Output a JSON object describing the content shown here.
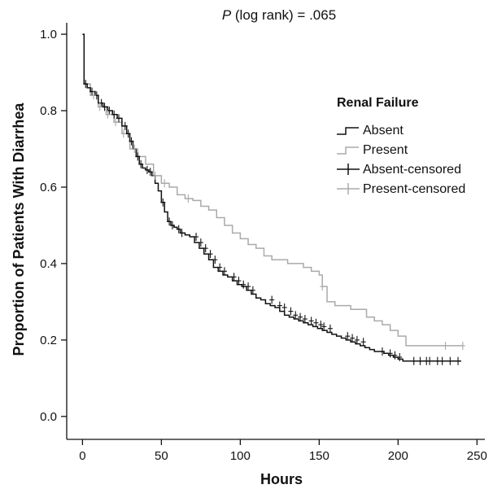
{
  "chart_data": {
    "type": "line",
    "subtype": "kaplan-meier step plot",
    "annotation": {
      "prefix": "P",
      "text": " (log rank) = .065"
    },
    "xlabel": "Hours",
    "ylabel": "Proportion of Patients With Diarrhea",
    "xlim": [
      -10,
      255
    ],
    "ylim": [
      -0.06,
      1.03
    ],
    "x_ticks": [
      0,
      50,
      100,
      150,
      200,
      250
    ],
    "y_ticks": [
      0.0,
      0.2,
      0.4,
      0.6,
      0.8,
      1.0
    ],
    "x_tick_labels": [
      "0",
      "50",
      "100",
      "150",
      "200",
      "250"
    ],
    "y_tick_labels": [
      "0.0",
      "0.2",
      "0.4",
      "0.6",
      "0.8",
      "1.0"
    ],
    "grid": false,
    "legend": {
      "title": "Renal Failure",
      "placement": "right",
      "entries": [
        "Absent",
        "Present",
        "Absent-censored",
        "Present-censored"
      ]
    },
    "colors": {
      "absent": "#111111",
      "present": "#aaaaaa",
      "axis": "#111111"
    },
    "series": [
      {
        "name": "Absent",
        "color": "#111111",
        "x": [
          0,
          1,
          3,
          5,
          8,
          10,
          13,
          16,
          19,
          22,
          25,
          28,
          30,
          32,
          34,
          36,
          38,
          40,
          42,
          44,
          46,
          48,
          50,
          52,
          54,
          56,
          58,
          60,
          62,
          65,
          68,
          71,
          74,
          77,
          80,
          83,
          86,
          89,
          92,
          95,
          98,
          101,
          104,
          107,
          110,
          113,
          116,
          119,
          122,
          125,
          128,
          131,
          134,
          137,
          140,
          143,
          146,
          149,
          152,
          155,
          158,
          161,
          164,
          167,
          170,
          173,
          176,
          179,
          182,
          185,
          188,
          191,
          194,
          197,
          200,
          203,
          206,
          240
        ],
        "y": [
          1.0,
          0.87,
          0.86,
          0.85,
          0.84,
          0.82,
          0.81,
          0.8,
          0.79,
          0.78,
          0.76,
          0.74,
          0.72,
          0.7,
          0.68,
          0.66,
          0.65,
          0.645,
          0.64,
          0.63,
          0.61,
          0.59,
          0.56,
          0.535,
          0.51,
          0.5,
          0.495,
          0.49,
          0.48,
          0.475,
          0.47,
          0.455,
          0.44,
          0.425,
          0.41,
          0.39,
          0.38,
          0.37,
          0.365,
          0.355,
          0.345,
          0.34,
          0.33,
          0.32,
          0.31,
          0.305,
          0.295,
          0.29,
          0.285,
          0.275,
          0.265,
          0.26,
          0.255,
          0.25,
          0.245,
          0.24,
          0.235,
          0.23,
          0.225,
          0.22,
          0.215,
          0.21,
          0.205,
          0.2,
          0.195,
          0.19,
          0.185,
          0.18,
          0.175,
          0.17,
          0.17,
          0.165,
          0.16,
          0.155,
          0.15,
          0.145,
          0.145,
          0.145
        ]
      },
      {
        "name": "Present",
        "color": "#aaaaaa",
        "x": [
          0,
          1,
          5,
          10,
          15,
          20,
          25,
          30,
          35,
          40,
          45,
          50,
          55,
          60,
          65,
          70,
          75,
          80,
          85,
          90,
          95,
          100,
          105,
          110,
          115,
          120,
          130,
          140,
          145,
          150,
          152,
          155,
          160,
          170,
          180,
          185,
          190,
          195,
          200,
          205,
          241
        ],
        "y": [
          1.0,
          0.87,
          0.84,
          0.81,
          0.79,
          0.77,
          0.74,
          0.7,
          0.68,
          0.66,
          0.63,
          0.61,
          0.6,
          0.58,
          0.57,
          0.565,
          0.55,
          0.54,
          0.52,
          0.5,
          0.48,
          0.465,
          0.45,
          0.44,
          0.42,
          0.41,
          0.4,
          0.39,
          0.38,
          0.37,
          0.34,
          0.3,
          0.29,
          0.28,
          0.26,
          0.25,
          0.24,
          0.225,
          0.21,
          0.185,
          0.185
        ]
      }
    ],
    "censored": [
      {
        "name": "Absent-censored",
        "color": "#111111",
        "x": [
          2,
          6,
          9,
          12,
          14,
          17,
          20,
          23,
          27,
          29,
          31,
          35,
          37,
          41,
          43,
          51,
          55,
          57,
          61,
          63,
          72,
          75,
          78,
          81,
          84,
          87,
          90,
          96,
          99,
          102,
          105,
          108,
          120,
          125,
          128,
          132,
          135,
          138,
          141,
          145,
          148,
          151,
          153,
          157,
          168,
          171,
          174,
          178,
          190,
          195,
          198,
          201,
          210,
          214,
          218,
          220,
          225,
          228,
          233,
          238
        ],
        "y": [
          0.87,
          0.85,
          0.84,
          0.82,
          0.81,
          0.8,
          0.79,
          0.78,
          0.76,
          0.74,
          0.72,
          0.68,
          0.66,
          0.645,
          0.64,
          0.56,
          0.51,
          0.5,
          0.49,
          0.48,
          0.47,
          0.455,
          0.44,
          0.425,
          0.41,
          0.39,
          0.38,
          0.365,
          0.355,
          0.345,
          0.34,
          0.33,
          0.305,
          0.29,
          0.285,
          0.275,
          0.265,
          0.26,
          0.255,
          0.25,
          0.245,
          0.24,
          0.235,
          0.23,
          0.21,
          0.205,
          0.2,
          0.195,
          0.17,
          0.165,
          0.16,
          0.155,
          0.145,
          0.145,
          0.145,
          0.145,
          0.145,
          0.145,
          0.145,
          0.145
        ]
      },
      {
        "name": "Present-censored",
        "color": "#aaaaaa",
        "x": [
          7,
          11,
          16,
          21,
          26,
          33,
          46,
          52,
          67,
          152,
          230,
          241
        ],
        "y": [
          0.84,
          0.81,
          0.79,
          0.77,
          0.74,
          0.7,
          0.63,
          0.61,
          0.57,
          0.34,
          0.185,
          0.185
        ]
      }
    ]
  }
}
